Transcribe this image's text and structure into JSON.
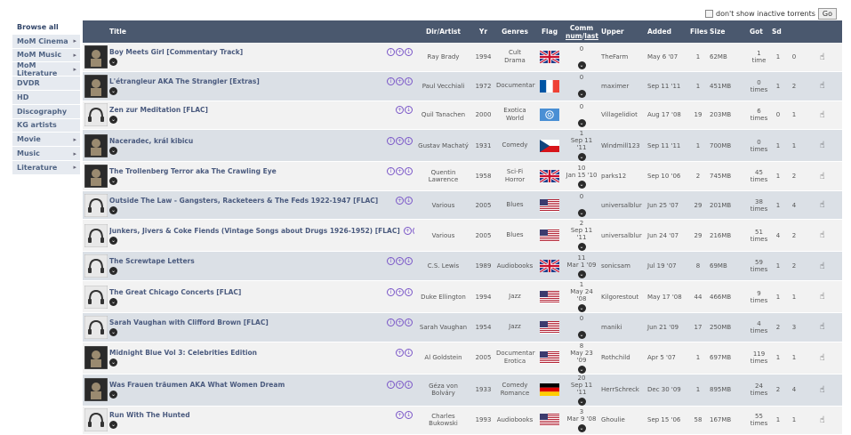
{
  "topbar": {
    "inactive_label": "don't show inactive torrents",
    "go_label": "Go"
  },
  "sidebar": [
    {
      "label": "Browse all",
      "arrow": false,
      "active": true
    },
    {
      "label": "MoM Cinema",
      "arrow": true
    },
    {
      "label": "MoM Music",
      "arrow": true
    },
    {
      "label": "MoM Literature",
      "arrow": true
    },
    {
      "label": "DVDR",
      "arrow": false
    },
    {
      "label": "HD",
      "arrow": false
    },
    {
      "label": "Discography",
      "arrow": false
    },
    {
      "label": "KG artists",
      "arrow": false
    },
    {
      "label": "Movie",
      "arrow": true
    },
    {
      "label": "Music",
      "arrow": true
    },
    {
      "label": "Literature",
      "arrow": true
    }
  ],
  "headers": {
    "title": "Title",
    "dir": "Dir/Artist",
    "yr": "Yr",
    "genres": "Genres",
    "flag": "Flag",
    "comm": "Comm",
    "comm_num": "num",
    "comm_sep": "/",
    "comm_last": "last",
    "upper": "Upper",
    "added": "Added",
    "files": "Files",
    "size": "Size",
    "got": "Got",
    "sd": "Sd"
  },
  "rows": [
    {
      "title": "Boy Meets Girl [Commentary Track]",
      "icons": 3,
      "dir": "Ray Brady",
      "yr": "1994",
      "genre1": "Cult",
      "genre2": "Drama",
      "flag": "gb",
      "comm": "0",
      "comm_date": "",
      "upper": "TheFarm",
      "added": "May 6 '07",
      "files": "1",
      "size": "62MB",
      "got1": "1",
      "got2": "time",
      "sd": "1",
      "sd_zero": false,
      "le": "0",
      "thumb": true
    },
    {
      "title": "L'étrangleur AKA The Strangler [Extras]",
      "icons": 3,
      "dir": "Paul Vecchiali",
      "yr": "1972",
      "genre1": "Documentary",
      "genre2": "",
      "flag": "fr",
      "comm": "0",
      "comm_date": "",
      "upper": "maximer",
      "added": "Sep 11 '11",
      "files": "1",
      "size": "451MB",
      "got1": "0",
      "got2": "times",
      "sd": "1",
      "sd_zero": false,
      "le": "2",
      "thumb": true
    },
    {
      "title": "Zen zur Meditation [FLAC]",
      "icons": 2,
      "dir": "Quil Tanachen",
      "yr": "2000",
      "genre1": "Exotica",
      "genre2": "World",
      "flag": "un",
      "comm": "0",
      "comm_date": "",
      "upper": "Villagelidiot",
      "added": "Aug 17 '08",
      "files": "19",
      "size": "203MB",
      "got1": "6",
      "got2": "times",
      "sd": "0",
      "sd_zero": true,
      "le": "1",
      "thumb": false
    },
    {
      "title": "Naceradec, král kibicu",
      "icons": 3,
      "dir": "Gustav Machatý",
      "yr": "1931",
      "genre1": "Comedy",
      "genre2": "",
      "flag": "cz",
      "comm": "1",
      "comm_date": "Sep 11 '11",
      "upper": "Windmill123",
      "added": "Sep 11 '11",
      "files": "1",
      "size": "700MB",
      "got1": "0",
      "got2": "times",
      "sd": "1",
      "sd_zero": false,
      "le": "1",
      "thumb": true
    },
    {
      "title": "The Trollenberg Terror aka The Crawling Eye",
      "icons": 3,
      "dir": "Quentin Lawrence",
      "yr": "1958",
      "genre1": "Sci-Fi",
      "genre2": "Horror",
      "flag": "gb",
      "comm": "10",
      "comm_date": "Jan 15 '10",
      "upper": "parks12",
      "added": "Sep 10 '06",
      "files": "2",
      "size": "745MB",
      "got1": "45",
      "got2": "times",
      "sd": "1",
      "sd_zero": false,
      "le": "2",
      "thumb": true
    },
    {
      "title": "Outside The Law - Gangsters, Racketeers & The Feds 1922-1947 [FLAC]",
      "icons": 2,
      "dir": "Various",
      "yr": "2005",
      "genre1": "Blues",
      "genre2": "",
      "flag": "us",
      "comm": "0",
      "comm_date": "",
      "upper": "universalblur",
      "added": "Jun 25 '07",
      "files": "29",
      "size": "201MB",
      "got1": "38",
      "got2": "times",
      "sd": "1",
      "sd_zero": false,
      "le": "4",
      "thumb": false
    },
    {
      "title": "Junkers, Jivers & Coke Fiends (Vintage Songs about Drugs 1926-1952) [FLAC]",
      "icons": 2,
      "dir": "Various",
      "yr": "2005",
      "genre1": "Blues",
      "genre2": "",
      "flag": "us",
      "comm": "2",
      "comm_date": "Sep 11 '11",
      "upper": "universalblur",
      "added": "Jun 24 '07",
      "files": "29",
      "size": "216MB",
      "got1": "51",
      "got2": "times",
      "sd": "4",
      "sd_zero": false,
      "le": "2",
      "thumb": false
    },
    {
      "title": "The Screwtape Letters",
      "icons": 3,
      "dir": "C.S. Lewis",
      "yr": "1989",
      "genre1": "Audiobooks",
      "genre2": "",
      "flag": "gb",
      "comm": "11",
      "comm_date": "Mar 1 '09",
      "upper": "sonicsam",
      "added": "Jul 19 '07",
      "files": "8",
      "size": "69MB",
      "got1": "59",
      "got2": "times",
      "sd": "1",
      "sd_zero": false,
      "le": "2",
      "thumb": false
    },
    {
      "title": "The Great Chicago Concerts [FLAC]",
      "icons": 3,
      "dir": "Duke Ellington",
      "yr": "1994",
      "genre1": "Jazz",
      "genre2": "",
      "flag": "us",
      "comm": "1",
      "comm_date": "May 24 '08",
      "upper": "Kilgorestout",
      "added": "May 17 '08",
      "files": "44",
      "size": "466MB",
      "got1": "9",
      "got2": "times",
      "sd": "1",
      "sd_zero": false,
      "le": "1",
      "thumb": false
    },
    {
      "title": "Sarah Vaughan with Clifford Brown [FLAC]",
      "icons": 3,
      "dir": "Sarah Vaughan",
      "yr": "1954",
      "genre1": "Jazz",
      "genre2": "",
      "flag": "us",
      "comm": "0",
      "comm_date": "",
      "upper": "maniki",
      "added": "Jun 21 '09",
      "files": "17",
      "size": "250MB",
      "got1": "4",
      "got2": "times",
      "sd": "2",
      "sd_zero": false,
      "le": "3",
      "thumb": false
    },
    {
      "title": "Midnight Blue Vol 3: Celebrities Edition",
      "icons": 2,
      "dir": "Al Goldstein",
      "yr": "2005",
      "genre1": "Documentary",
      "genre2": "Erotica",
      "flag": "us",
      "comm": "8",
      "comm_date": "May 23 '09",
      "upper": "Rothchild",
      "added": "Apr 5 '07",
      "files": "1",
      "size": "697MB",
      "got1": "119",
      "got2": "times",
      "sd": "1",
      "sd_zero": false,
      "le": "1",
      "thumb": true
    },
    {
      "title": "Was Frauen träumen AKA What Women Dream",
      "icons": 3,
      "dir": "Géza von Bolváry",
      "yr": "1933",
      "genre1": "Comedy",
      "genre2": "Romance",
      "flag": "de",
      "comm": "20",
      "comm_date": "Sep 11 '11",
      "upper": "HerrSchreck",
      "added": "Dec 30 '09",
      "files": "1",
      "size": "895MB",
      "got1": "24",
      "got2": "times",
      "sd": "2",
      "sd_zero": false,
      "le": "4",
      "thumb": true
    },
    {
      "title": "Run With The Hunted",
      "icons": 2,
      "dir": "Charles Bukowski",
      "yr": "1993",
      "genre1": "Audiobooks",
      "genre2": "",
      "flag": "us",
      "comm": "3",
      "comm_date": "Mar 9 '08",
      "upper": "Ghoulie",
      "added": "Sep 15 '06",
      "files": "58",
      "size": "167MB",
      "got1": "55",
      "got2": "times",
      "sd": "1",
      "sd_zero": false,
      "le": "1",
      "thumb": false
    }
  ],
  "colors": {
    "header_bg": "#4a586e",
    "row_odd": "#f2f2f2",
    "row_even": "#dbe0e6",
    "title_link": "#4a5a7e",
    "icon_purple": "#7a56c8",
    "zero_red": "#c0392b"
  },
  "icons": {
    "download": "download-icon",
    "info": "info-icon",
    "add": "add-icon",
    "bookmark": "bookmark-icon",
    "thanks": "thumbs-up-icon"
  }
}
